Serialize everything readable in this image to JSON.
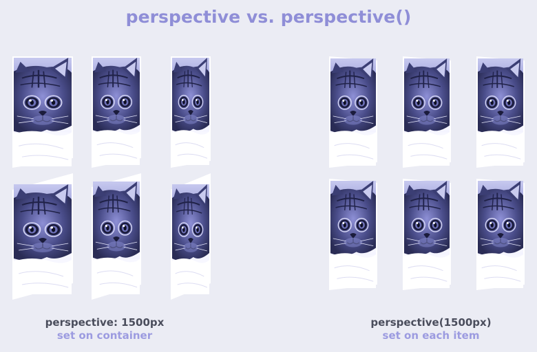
{
  "title": "perspective vs. perspective()",
  "left_panel": {
    "caption_main": "perspective: 1500px",
    "caption_sub": "set on container"
  },
  "right_panel": {
    "caption_main": "perspective(1500px)",
    "caption_sub": "set on each item"
  },
  "colors": {
    "background": "#ebecf4",
    "title": "#8f8ed7",
    "caption_main": "#4a4d5c",
    "caption_sub": "#9c9be0",
    "image_tint_light": "#b9bbe8",
    "image_tint_dark": "#2c2f5c"
  },
  "image_subject": "kitten-photo"
}
